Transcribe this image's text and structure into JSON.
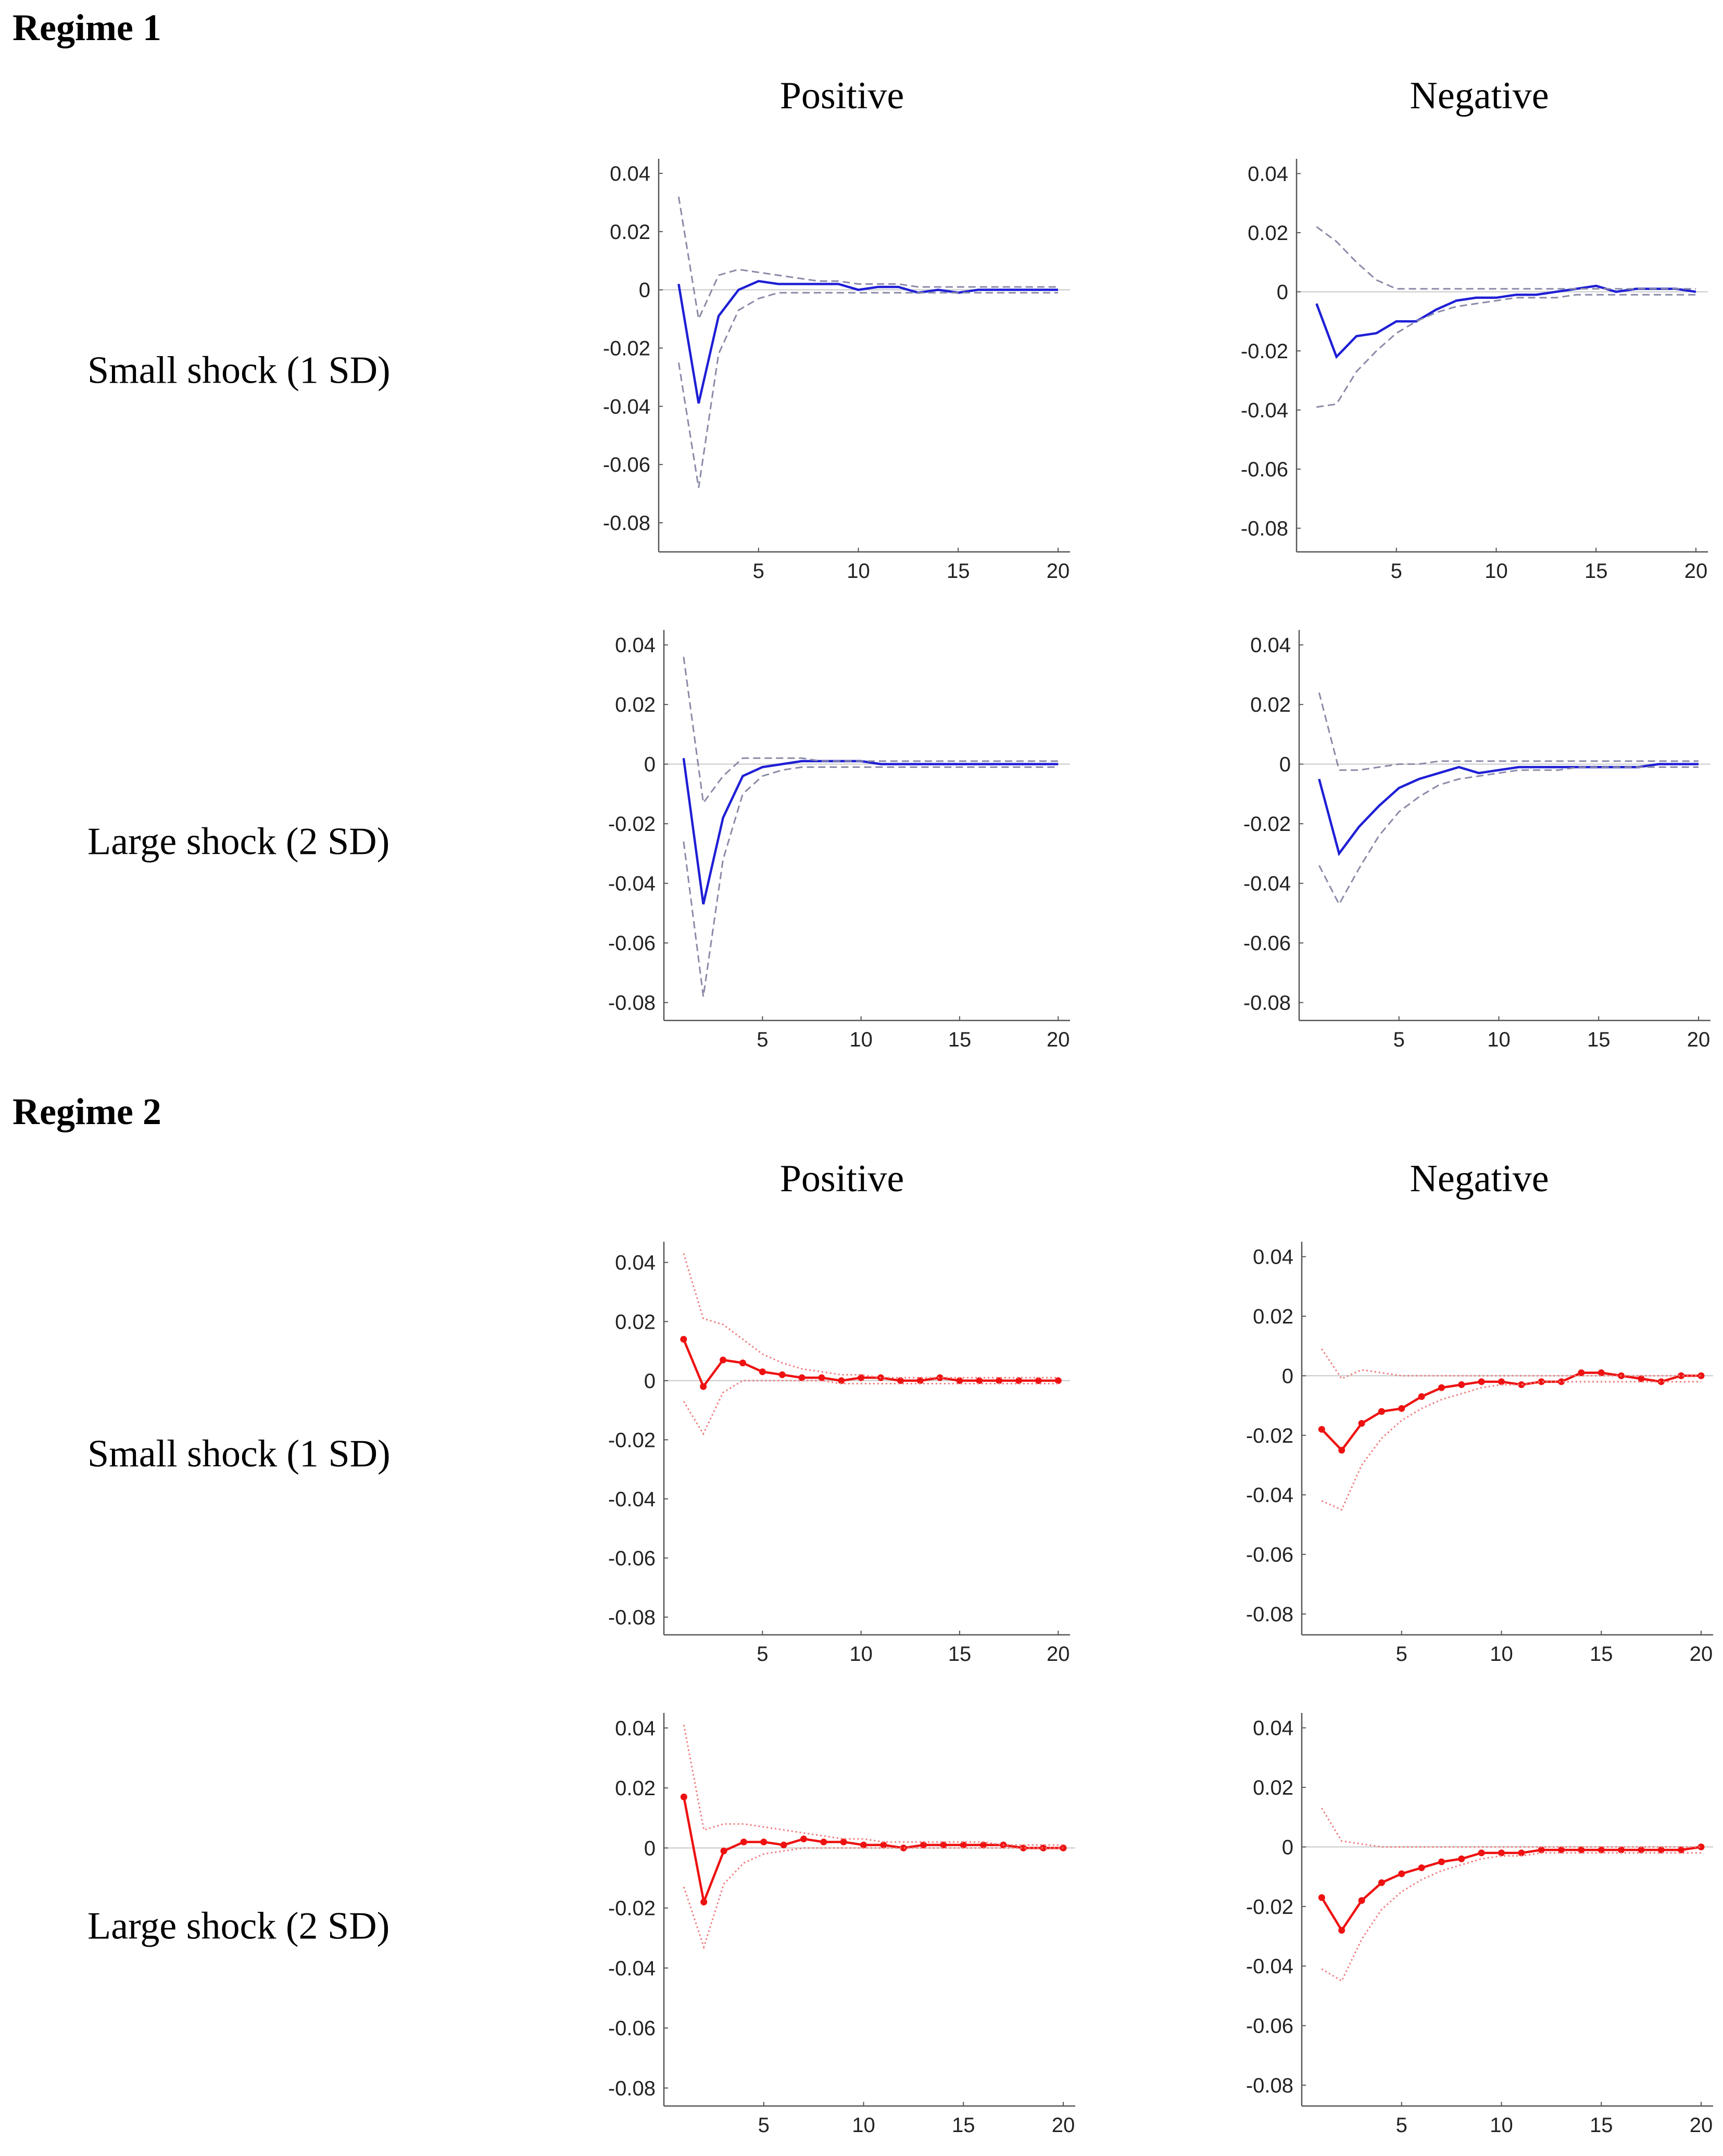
{
  "page": {
    "regime1": {
      "title": "Regime 1",
      "col_positive": "Positive",
      "col_negative": "Negative",
      "row_small": "Small shock (1 SD)",
      "row_large": "Large shock (2 SD)"
    },
    "regime2": {
      "title": "Regime 2",
      "col_positive": "Positive",
      "col_negative": "Negative",
      "row_small": "Small shock (1 SD)",
      "row_large": "Large shock (2 SD)"
    }
  },
  "colors": {
    "blue": "#1f1fd6",
    "blue_band": "#8a8aa8",
    "red": "#ee1111",
    "red_band": "#f07a7a"
  },
  "chart_data": [
    {
      "id": "r1_small_pos",
      "type": "line",
      "regime": "Regime 1",
      "shock": "Small shock (1 SD)",
      "sign": "Positive",
      "x": [
        1,
        2,
        3,
        4,
        5,
        6,
        7,
        8,
        9,
        10,
        11,
        12,
        13,
        14,
        15,
        16,
        17,
        18,
        19,
        20
      ],
      "ylim": [
        -0.09,
        0.045
      ],
      "xticks": [
        5,
        10,
        15,
        20
      ],
      "yticks": [
        0.04,
        0.02,
        0,
        -0.02,
        -0.04,
        -0.06,
        -0.08
      ],
      "ytick_labels": [
        "0.04",
        "0.02",
        "0",
        "-0.02",
        "-0.04",
        "-0.06",
        "-0.08"
      ],
      "xtick_labels": [
        "5",
        "10",
        "15",
        "20"
      ],
      "color": "blue",
      "markers": false,
      "series": [
        {
          "name": "response",
          "values": [
            0.002,
            -0.039,
            -0.009,
            0.0,
            0.003,
            0.002,
            0.002,
            0.002,
            0.002,
            0.0,
            0.001,
            0.001,
            -0.001,
            0.0,
            -0.001,
            0.0,
            0.0,
            0.0,
            0.0,
            0.0
          ]
        },
        {
          "name": "upper",
          "values": [
            0.032,
            -0.01,
            0.005,
            0.007,
            0.006,
            0.005,
            0.004,
            0.003,
            0.003,
            0.002,
            0.002,
            0.002,
            0.001,
            0.001,
            0.001,
            0.001,
            0.001,
            0.001,
            0.001,
            0.001
          ]
        },
        {
          "name": "lower",
          "values": [
            -0.025,
            -0.068,
            -0.022,
            -0.007,
            -0.003,
            -0.001,
            -0.001,
            -0.001,
            -0.001,
            -0.001,
            -0.001,
            -0.001,
            -0.001,
            -0.001,
            -0.001,
            -0.001,
            -0.001,
            -0.001,
            -0.001,
            -0.001
          ]
        }
      ]
    },
    {
      "id": "r1_small_neg",
      "type": "line",
      "regime": "Regime 1",
      "shock": "Small shock (1 SD)",
      "sign": "Negative",
      "x": [
        1,
        2,
        3,
        4,
        5,
        6,
        7,
        8,
        9,
        10,
        11,
        12,
        13,
        14,
        15,
        16,
        17,
        18,
        19,
        20
      ],
      "ylim": [
        -0.088,
        0.045
      ],
      "xticks": [
        5,
        10,
        15,
        20
      ],
      "yticks": [
        0.04,
        0.02,
        0,
        -0.02,
        -0.04,
        -0.06,
        -0.08
      ],
      "ytick_labels": [
        "0.04",
        "0.02",
        "0",
        "-0.02",
        "-0.04",
        "-0.06",
        "-0.08"
      ],
      "xtick_labels": [
        "5",
        "10",
        "15",
        "20"
      ],
      "color": "blue",
      "markers": false,
      "series": [
        {
          "name": "response",
          "values": [
            -0.004,
            -0.022,
            -0.015,
            -0.014,
            -0.01,
            -0.01,
            -0.006,
            -0.003,
            -0.002,
            -0.002,
            -0.001,
            -0.001,
            0.0,
            0.001,
            0.002,
            0.0,
            0.001,
            0.001,
            0.001,
            0.0
          ]
        },
        {
          "name": "upper",
          "values": [
            0.022,
            0.017,
            0.01,
            0.004,
            0.001,
            0.001,
            0.001,
            0.001,
            0.001,
            0.001,
            0.001,
            0.001,
            0.001,
            0.001,
            0.001,
            0.001,
            0.001,
            0.001,
            0.001,
            0.001
          ]
        },
        {
          "name": "lower",
          "values": [
            -0.039,
            -0.038,
            -0.027,
            -0.02,
            -0.014,
            -0.01,
            -0.007,
            -0.005,
            -0.004,
            -0.003,
            -0.002,
            -0.002,
            -0.002,
            -0.001,
            -0.001,
            -0.001,
            -0.001,
            -0.001,
            -0.001,
            -0.001
          ]
        }
      ]
    },
    {
      "id": "r1_large_pos",
      "type": "line",
      "regime": "Regime 1",
      "shock": "Large shock (2 SD)",
      "sign": "Positive",
      "x": [
        1,
        2,
        3,
        4,
        5,
        6,
        7,
        8,
        9,
        10,
        11,
        12,
        13,
        14,
        15,
        16,
        17,
        18,
        19,
        20
      ],
      "ylim": [
        -0.086,
        0.045
      ],
      "xticks": [
        5,
        10,
        15,
        20
      ],
      "yticks": [
        0.04,
        0.02,
        0,
        -0.02,
        -0.04,
        -0.06,
        -0.08
      ],
      "ytick_labels": [
        "0.04",
        "0.02",
        "0",
        "-0.02",
        "-0.04",
        "-0.06",
        "-0.08"
      ],
      "xtick_labels": [
        "5",
        "10",
        "15",
        "20"
      ],
      "color": "blue",
      "markers": false,
      "series": [
        {
          "name": "response",
          "values": [
            0.002,
            -0.047,
            -0.018,
            -0.004,
            -0.001,
            0.0,
            0.001,
            0.001,
            0.001,
            0.001,
            0.0,
            0.0,
            0.0,
            0.0,
            0.0,
            0.0,
            0.0,
            0.0,
            0.0,
            0.0
          ]
        },
        {
          "name": "upper",
          "values": [
            0.036,
            -0.013,
            -0.004,
            0.002,
            0.002,
            0.002,
            0.002,
            0.001,
            0.001,
            0.001,
            0.001,
            0.001,
            0.001,
            0.001,
            0.001,
            0.001,
            0.001,
            0.001,
            0.001,
            0.001
          ]
        },
        {
          "name": "lower",
          "values": [
            -0.026,
            -0.078,
            -0.032,
            -0.01,
            -0.004,
            -0.002,
            -0.001,
            -0.001,
            -0.001,
            -0.001,
            -0.001,
            -0.001,
            -0.001,
            -0.001,
            -0.001,
            -0.001,
            -0.001,
            -0.001,
            -0.001,
            -0.001
          ]
        }
      ]
    },
    {
      "id": "r1_large_neg",
      "type": "line",
      "regime": "Regime 1",
      "shock": "Large shock (2 SD)",
      "sign": "Negative",
      "x": [
        1,
        2,
        3,
        4,
        5,
        6,
        7,
        8,
        9,
        10,
        11,
        12,
        13,
        14,
        15,
        16,
        17,
        18,
        19,
        20
      ],
      "ylim": [
        -0.086,
        0.045
      ],
      "xticks": [
        5,
        10,
        15,
        20
      ],
      "yticks": [
        0.04,
        0.02,
        0,
        -0.02,
        -0.04,
        -0.06,
        -0.08
      ],
      "ytick_labels": [
        "0.04",
        "0.02",
        "0",
        "-0.02",
        "-0.04",
        "-0.06",
        "-0.08"
      ],
      "xtick_labels": [
        "5",
        "10",
        "15",
        "20"
      ],
      "color": "blue",
      "markers": false,
      "series": [
        {
          "name": "response",
          "values": [
            -0.005,
            -0.03,
            -0.021,
            -0.014,
            -0.008,
            -0.005,
            -0.003,
            -0.001,
            -0.003,
            -0.002,
            -0.001,
            -0.001,
            -0.001,
            -0.001,
            -0.001,
            -0.001,
            -0.001,
            0.0,
            0.0,
            0.0
          ]
        },
        {
          "name": "upper",
          "values": [
            0.024,
            -0.002,
            -0.002,
            -0.001,
            0.0,
            0.0,
            0.001,
            0.001,
            0.001,
            0.001,
            0.001,
            0.001,
            0.001,
            0.001,
            0.001,
            0.001,
            0.001,
            0.001,
            0.001,
            0.001
          ]
        },
        {
          "name": "lower",
          "values": [
            -0.034,
            -0.047,
            -0.035,
            -0.024,
            -0.016,
            -0.011,
            -0.007,
            -0.005,
            -0.004,
            -0.003,
            -0.002,
            -0.002,
            -0.002,
            -0.001,
            -0.001,
            -0.001,
            -0.001,
            -0.001,
            -0.001,
            -0.001
          ]
        }
      ]
    },
    {
      "id": "r2_small_pos",
      "type": "line",
      "regime": "Regime 2",
      "shock": "Small shock (1 SD)",
      "sign": "Positive",
      "x": [
        1,
        2,
        3,
        4,
        5,
        6,
        7,
        8,
        9,
        10,
        11,
        12,
        13,
        14,
        15,
        16,
        17,
        18,
        19,
        20
      ],
      "ylim": [
        -0.086,
        0.047
      ],
      "xticks": [
        5,
        10,
        15,
        20
      ],
      "yticks": [
        0.04,
        0.02,
        0,
        -0.02,
        -0.04,
        -0.06,
        -0.08
      ],
      "ytick_labels": [
        "0.04",
        "0.02",
        "0",
        "-0.02",
        "-0.04",
        "-0.06",
        "-0.08"
      ],
      "xtick_labels": [
        "5",
        "10",
        "15",
        "20"
      ],
      "color": "red",
      "markers": true,
      "series": [
        {
          "name": "response",
          "values": [
            0.014,
            -0.002,
            0.007,
            0.006,
            0.003,
            0.002,
            0.001,
            0.001,
            0.0,
            0.001,
            0.001,
            0.0,
            0.0,
            0.001,
            0.0,
            0.0,
            0.0,
            0.0,
            0.0,
            0.0
          ]
        },
        {
          "name": "upper",
          "values": [
            0.043,
            0.021,
            0.019,
            0.014,
            0.009,
            0.006,
            0.004,
            0.003,
            0.002,
            0.002,
            0.001,
            0.001,
            0.001,
            0.001,
            0.001,
            0.001,
            0.001,
            0.001,
            0.001,
            0.001
          ]
        },
        {
          "name": "lower",
          "values": [
            -0.007,
            -0.018,
            -0.004,
            0.0,
            0.0,
            0.0,
            0.0,
            0.0,
            -0.001,
            -0.001,
            -0.001,
            -0.001,
            -0.001,
            -0.001,
            -0.001,
            -0.001,
            -0.001,
            -0.001,
            -0.001,
            -0.001
          ]
        }
      ]
    },
    {
      "id": "r2_small_neg",
      "type": "line",
      "regime": "Regime 2",
      "shock": "Small shock (1 SD)",
      "sign": "Negative",
      "x": [
        1,
        2,
        3,
        4,
        5,
        6,
        7,
        8,
        9,
        10,
        11,
        12,
        13,
        14,
        15,
        16,
        17,
        18,
        19,
        20
      ],
      "ylim": [
        -0.087,
        0.045
      ],
      "xticks": [
        5,
        10,
        15,
        20
      ],
      "yticks": [
        0.04,
        0.02,
        0,
        -0.02,
        -0.04,
        -0.06,
        -0.08
      ],
      "ytick_labels": [
        "0.04",
        "0.02",
        "0",
        "-0.02",
        "-0.04",
        "-0.06",
        "-0.08"
      ],
      "xtick_labels": [
        "5",
        "10",
        "15",
        "20"
      ],
      "color": "red",
      "markers": true,
      "series": [
        {
          "name": "response",
          "values": [
            -0.018,
            -0.025,
            -0.016,
            -0.012,
            -0.011,
            -0.007,
            -0.004,
            -0.003,
            -0.002,
            -0.002,
            -0.003,
            -0.002,
            -0.002,
            0.001,
            0.001,
            0.0,
            -0.001,
            -0.002,
            0.0,
            0.0
          ]
        },
        {
          "name": "upper",
          "values": [
            0.009,
            -0.001,
            0.002,
            0.001,
            0.0,
            0.0,
            0.0,
            0.0,
            0.0,
            0.0,
            0.0,
            0.0,
            0.0,
            0.0,
            0.0,
            0.0,
            0.0,
            0.0,
            0.0,
            0.0
          ]
        },
        {
          "name": "lower",
          "values": [
            -0.042,
            -0.045,
            -0.03,
            -0.021,
            -0.015,
            -0.011,
            -0.008,
            -0.006,
            -0.004,
            -0.003,
            -0.003,
            -0.002,
            -0.002,
            -0.002,
            -0.002,
            -0.002,
            -0.002,
            -0.002,
            -0.002,
            -0.002
          ]
        }
      ]
    },
    {
      "id": "r2_large_pos",
      "type": "line",
      "regime": "Regime 2",
      "shock": "Large shock (2 SD)",
      "sign": "Positive",
      "x": [
        1,
        2,
        3,
        4,
        5,
        6,
        7,
        8,
        9,
        10,
        11,
        12,
        13,
        14,
        15,
        16,
        17,
        18,
        19,
        20
      ],
      "ylim": [
        -0.086,
        0.045
      ],
      "xticks": [
        5,
        10,
        15,
        20
      ],
      "yticks": [
        0.04,
        0.02,
        0,
        -0.02,
        -0.04,
        -0.06,
        -0.08
      ],
      "ytick_labels": [
        "0.04",
        "0.02",
        "0",
        "-0.02",
        "-0.04",
        "-0.06",
        "-0.08"
      ],
      "xtick_labels": [
        "5",
        "10",
        "15",
        "20"
      ],
      "color": "red",
      "markers": true,
      "series": [
        {
          "name": "response",
          "values": [
            0.017,
            -0.018,
            -0.001,
            0.002,
            0.002,
            0.001,
            0.003,
            0.002,
            0.002,
            0.001,
            0.001,
            0.0,
            0.001,
            0.001,
            0.001,
            0.001,
            0.001,
            0.0,
            0.0,
            0.0
          ]
        },
        {
          "name": "upper",
          "values": [
            0.041,
            0.006,
            0.008,
            0.008,
            0.007,
            0.006,
            0.005,
            0.004,
            0.003,
            0.003,
            0.002,
            0.002,
            0.002,
            0.002,
            0.002,
            0.002,
            0.001,
            0.001,
            0.001,
            0.001
          ]
        },
        {
          "name": "lower",
          "values": [
            -0.013,
            -0.033,
            -0.012,
            -0.005,
            -0.002,
            -0.001,
            0.0,
            0.0,
            0.0,
            0.0,
            0.0,
            0.0,
            0.0,
            0.0,
            0.0,
            0.0,
            0.0,
            0.0,
            0.0,
            0.0
          ]
        }
      ]
    },
    {
      "id": "r2_large_neg",
      "type": "line",
      "regime": "Regime 2",
      "shock": "Large shock (2 SD)",
      "sign": "Negative",
      "x": [
        1,
        2,
        3,
        4,
        5,
        6,
        7,
        8,
        9,
        10,
        11,
        12,
        13,
        14,
        15,
        16,
        17,
        18,
        19,
        20
      ],
      "ylim": [
        -0.087,
        0.045
      ],
      "xticks": [
        5,
        10,
        15,
        20
      ],
      "yticks": [
        0.04,
        0.02,
        0,
        -0.02,
        -0.04,
        -0.06,
        -0.08
      ],
      "ytick_labels": [
        "0.04",
        "0.02",
        "0",
        "-0.02",
        "-0.04",
        "-0.06",
        "-0.08"
      ],
      "xtick_labels": [
        "5",
        "10",
        "15",
        "20"
      ],
      "color": "red",
      "markers": true,
      "series": [
        {
          "name": "response",
          "values": [
            -0.017,
            -0.028,
            -0.018,
            -0.012,
            -0.009,
            -0.007,
            -0.005,
            -0.004,
            -0.002,
            -0.002,
            -0.002,
            -0.001,
            -0.001,
            -0.001,
            -0.001,
            -0.001,
            -0.001,
            -0.001,
            -0.001,
            0.0
          ]
        },
        {
          "name": "upper",
          "values": [
            0.013,
            0.002,
            0.001,
            0.0,
            0.0,
            0.0,
            0.0,
            0.0,
            0.0,
            0.0,
            0.0,
            0.0,
            0.0,
            0.0,
            0.0,
            0.0,
            0.0,
            0.0,
            0.0,
            0.0
          ]
        },
        {
          "name": "lower",
          "values": [
            -0.041,
            -0.045,
            -0.031,
            -0.021,
            -0.015,
            -0.011,
            -0.008,
            -0.006,
            -0.004,
            -0.003,
            -0.003,
            -0.002,
            -0.002,
            -0.002,
            -0.002,
            -0.002,
            -0.002,
            -0.002,
            -0.002,
            -0.002
          ]
        }
      ]
    }
  ]
}
